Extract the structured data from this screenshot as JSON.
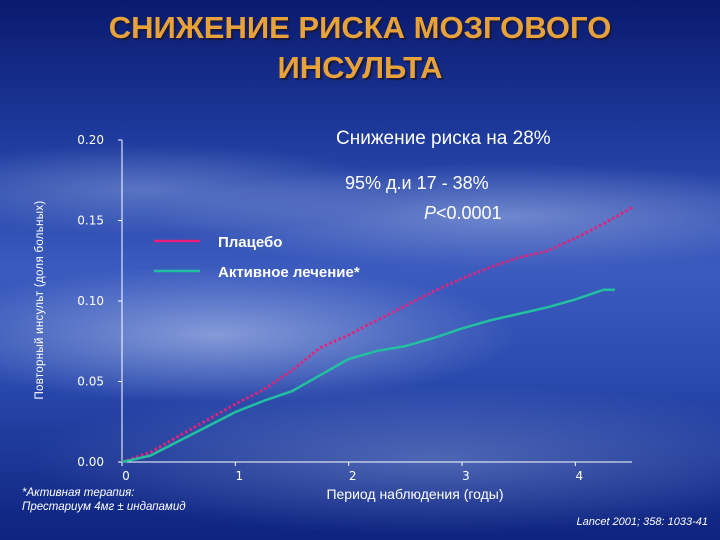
{
  "title": {
    "line1": "СНИЖЕНИЕ РИСКА МОЗГОВОГО",
    "line2": "ИНСУЛЬТА"
  },
  "annotations": {
    "risk_reduction": "Снижение риска на 28%",
    "ci": "95% д.и 17 - 38%",
    "p_prefix": "P",
    "p_value": "<0.0001"
  },
  "footnote": {
    "line1": "*Активная терапия:",
    "line2": "Престариум 4мг ± индапамид"
  },
  "citation": "Lancet 2001; 358: 1033-41",
  "colors": {
    "placebo": "#e8207a",
    "active": "#22c0a0",
    "title": "#e8a23a"
  },
  "chart_data": {
    "type": "line",
    "xlabel": "Период наблюдения (годы)",
    "ylabel": "Повторный инсульт (доля больных)",
    "xlim": [
      0,
      4.5
    ],
    "ylim": [
      0,
      0.2
    ],
    "xticks": [
      "0",
      "1",
      "2",
      "3",
      "4"
    ],
    "yticks": [
      "0.00",
      "0.05",
      "0.10",
      "0.15",
      "0.20"
    ],
    "legend": "top-left",
    "series": [
      {
        "name": "Плацебо",
        "style": "dotted",
        "x": [
          0,
          0.25,
          0.5,
          0.75,
          1.0,
          1.25,
          1.5,
          1.75,
          2.0,
          2.25,
          2.5,
          2.75,
          3.0,
          3.25,
          3.5,
          3.75,
          4.0,
          4.25,
          4.5
        ],
        "y": [
          0.0,
          0.006,
          0.016,
          0.026,
          0.036,
          0.045,
          0.057,
          0.071,
          0.079,
          0.088,
          0.097,
          0.106,
          0.114,
          0.121,
          0.127,
          0.131,
          0.139,
          0.148,
          0.158
        ]
      },
      {
        "name": "Активное лечение*",
        "style": "solid",
        "x": [
          0,
          0.25,
          0.5,
          0.75,
          1.0,
          1.25,
          1.5,
          1.75,
          2.0,
          2.25,
          2.5,
          2.75,
          3.0,
          3.25,
          3.5,
          3.75,
          4.0,
          4.25,
          4.35
        ],
        "y": [
          0.0,
          0.004,
          0.013,
          0.022,
          0.031,
          0.038,
          0.044,
          0.054,
          0.064,
          0.069,
          0.072,
          0.077,
          0.083,
          0.088,
          0.092,
          0.096,
          0.101,
          0.107,
          0.107
        ]
      }
    ]
  }
}
